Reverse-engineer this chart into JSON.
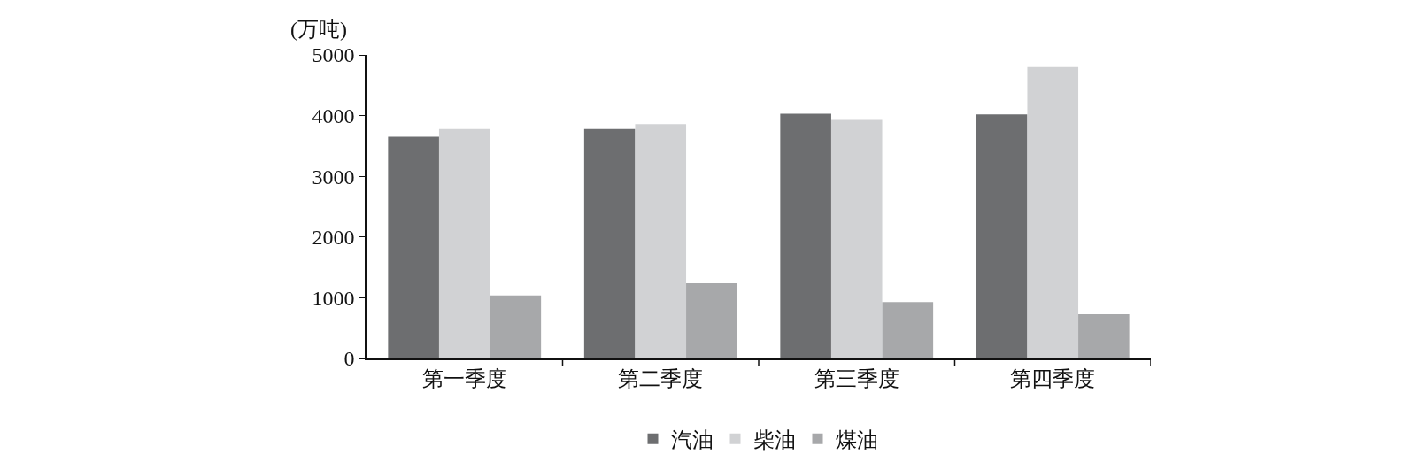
{
  "chart_data": {
    "type": "bar",
    "ylabel": "(万吨)",
    "categories": [
      "第一季度",
      "第二季度",
      "第三季度",
      "第四季度"
    ],
    "series": [
      {
        "name": "汽油",
        "color": "#6d6e70",
        "values": [
          3650,
          3780,
          4030,
          4020
        ]
      },
      {
        "name": "柴油",
        "color": "#d1d2d4",
        "values": [
          3780,
          3860,
          3930,
          4800
        ]
      },
      {
        "name": "煤油",
        "color": "#a7a8aa",
        "values": [
          1040,
          1240,
          930,
          730
        ]
      }
    ],
    "ylim": [
      0,
      5000
    ],
    "yticks": [
      0,
      1000,
      2000,
      3000,
      4000,
      5000
    ],
    "grid": false,
    "legend": "bottom"
  }
}
